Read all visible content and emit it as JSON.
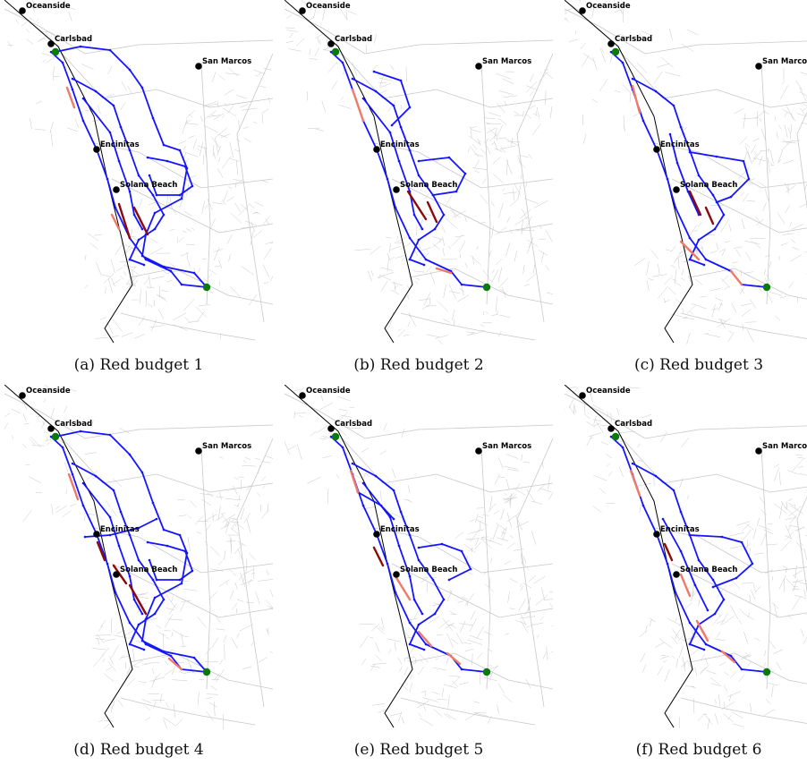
{
  "figure": {
    "cities": [
      "Oceanside",
      "Carlsbad",
      "San Marcos",
      "Encinitas",
      "Solana Beach"
    ],
    "colors": {
      "route": "#1414ff",
      "route_node": "#1414ff",
      "red_light": "#f07a6a",
      "red_dark": "#8b0a0a",
      "coastline": "#000000",
      "roads": "#c8c8c8",
      "endpoint": "#0a7a0a",
      "city_marker": "#000000"
    },
    "panels": [
      {
        "caption": "(a) Red budget 1",
        "red_budget": 1
      },
      {
        "caption": "(b) Red budget 2",
        "red_budget": 2
      },
      {
        "caption": "(c) Red budget 3",
        "red_budget": 3
      },
      {
        "caption": "(d) Red budget 4",
        "red_budget": 4
      },
      {
        "caption": "(e) Red budget 5",
        "red_budget": 5
      },
      {
        "caption": "(f) Red budget 6",
        "red_budget": 6
      }
    ]
  }
}
